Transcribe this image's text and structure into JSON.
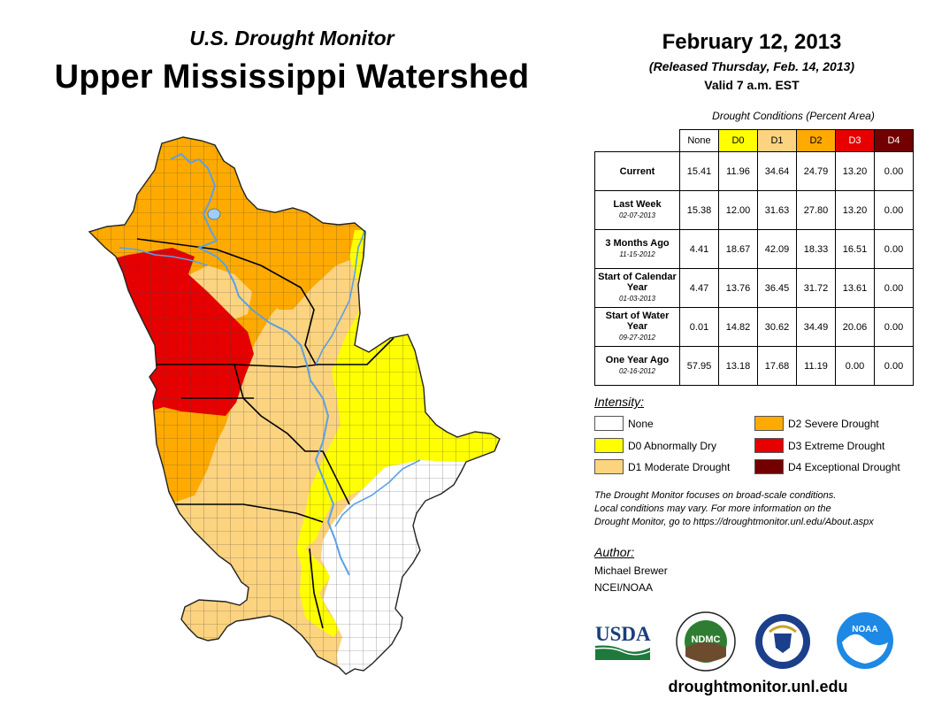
{
  "header": {
    "subtitle": "U.S. Drought Monitor",
    "title": "Upper Mississippi Watershed",
    "date": "February 12, 2013",
    "released": "(Released Thursday, Feb. 14, 2013)",
    "valid": "Valid 7 a.m. EST"
  },
  "table": {
    "caption": "Drought Conditions (Percent Area)",
    "columns": [
      "None",
      "D0",
      "D1",
      "D2",
      "D3",
      "D4"
    ],
    "column_colors": [
      "#ffffff",
      "#ffff00",
      "#fcd37f",
      "#ffaa00",
      "#e60000",
      "#730000"
    ],
    "rows": [
      {
        "label": "Current",
        "sub": "",
        "values": [
          "15.41",
          "11.96",
          "34.64",
          "24.79",
          "13.20",
          "0.00"
        ]
      },
      {
        "label": "Last Week",
        "sub": "02-07-2013",
        "values": [
          "15.38",
          "12.00",
          "31.63",
          "27.80",
          "13.20",
          "0.00"
        ]
      },
      {
        "label": "3 Months Ago",
        "sub": "11-15-2012",
        "values": [
          "4.41",
          "18.67",
          "42.09",
          "18.33",
          "16.51",
          "0.00"
        ]
      },
      {
        "label": "Start of Calendar Year",
        "sub": "01-03-2013",
        "values": [
          "4.47",
          "13.76",
          "36.45",
          "31.72",
          "13.61",
          "0.00"
        ]
      },
      {
        "label": "Start of Water Year",
        "sub": "09-27-2012",
        "values": [
          "0.01",
          "14.82",
          "30.62",
          "34.49",
          "20.06",
          "0.00"
        ]
      },
      {
        "label": "One Year Ago",
        "sub": "02-16-2012",
        "values": [
          "57.95",
          "13.18",
          "17.68",
          "11.19",
          "0.00",
          "0.00"
        ]
      }
    ]
  },
  "legend": {
    "title": "Intensity:",
    "items": [
      {
        "label": "None",
        "color": "#ffffff"
      },
      {
        "label": "D0 Abnormally Dry",
        "color": "#ffff00"
      },
      {
        "label": "D1 Moderate Drought",
        "color": "#fcd37f"
      },
      {
        "label": "D2 Severe Drought",
        "color": "#ffaa00"
      },
      {
        "label": "D3 Extreme Drought",
        "color": "#e60000"
      },
      {
        "label": "D4 Exceptional Drought",
        "color": "#730000"
      }
    ]
  },
  "note": {
    "line1": "The Drought Monitor focuses on broad-scale conditions.",
    "line2": "Local conditions may vary. For more information on the",
    "line3": "Drought Monitor, go to https://droughtmonitor.unl.edu/About.aspx"
  },
  "author": {
    "title": "Author:",
    "name": "Michael Brewer",
    "org": "NCEI/NOAA"
  },
  "logos": {
    "usda": "USDA",
    "ndmc": "NDMC",
    "noaa": "NOAA"
  },
  "footer": {
    "url": "droughtmonitor.unl.edu"
  },
  "map_colors": {
    "none": "#ffffff",
    "d0": "#ffff00",
    "d1": "#fcd37f",
    "d2": "#ffaa00",
    "d3": "#e60000",
    "water": "#5aa0e6",
    "lake": "#9fcdf5",
    "border": "#555555"
  }
}
